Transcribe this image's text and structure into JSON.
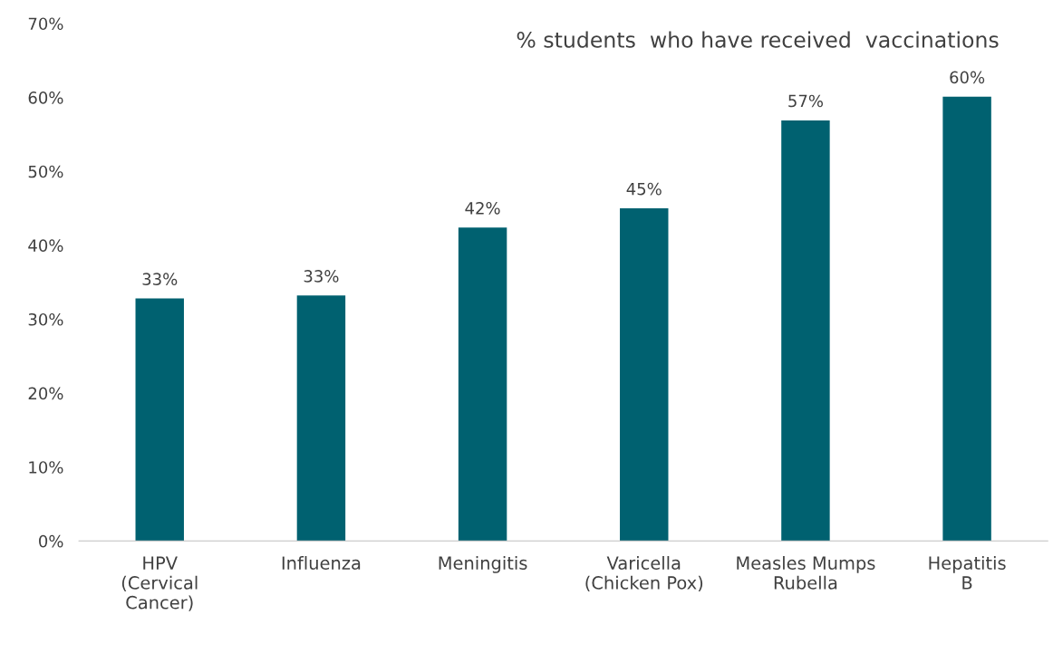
{
  "chart_data": {
    "type": "bar",
    "title": "% students  who have received  vaccinations",
    "categories": [
      "HPV\n(Cervical\nCancer)",
      "Influenza",
      "Meningitis",
      "Varicella\n(Chicken Pox)",
      "Measles Mumps\nRubella",
      "Hepatitis\nB"
    ],
    "values": [
      32.8,
      33.2,
      42.4,
      45.0,
      56.9,
      60.1
    ],
    "value_labels": [
      "33%",
      "33%",
      "42%",
      "45%",
      "57%",
      "60%"
    ],
    "color": "#006170",
    "ylim": [
      0,
      70
    ],
    "yticks": [
      {
        "value": 0,
        "label": "0%"
      },
      {
        "value": 10,
        "label": "10%"
      },
      {
        "value": 20,
        "label": "20%"
      },
      {
        "value": 30,
        "label": "30%"
      },
      {
        "value": 40,
        "label": "40%"
      },
      {
        "value": 50,
        "label": "50%"
      },
      {
        "value": 60,
        "label": "60%"
      },
      {
        "value": 70,
        "label": "70%"
      }
    ],
    "grid": false,
    "legend": false
  }
}
